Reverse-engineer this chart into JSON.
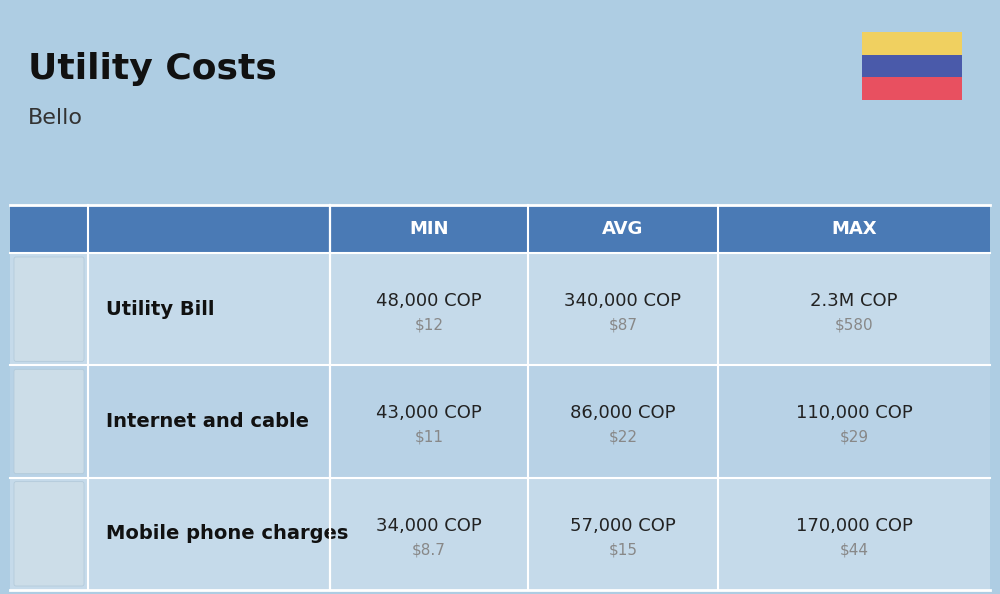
{
  "title": "Utility Costs",
  "subtitle": "Bello",
  "background_color": "#aecde3",
  "header_bg_color": "#4a7ab5",
  "header_text_color": "#ffffff",
  "row_bg_color_odd": "#c5daea",
  "row_bg_color_even": "#b8d2e6",
  "table_line_color": "#ffffff",
  "col_headers": [
    "MIN",
    "AVG",
    "MAX"
  ],
  "rows": [
    {
      "label": "Utility Bill",
      "min_cop": "48,000 COP",
      "min_usd": "$12",
      "avg_cop": "340,000 COP",
      "avg_usd": "$87",
      "max_cop": "2.3M COP",
      "max_usd": "$580"
    },
    {
      "label": "Internet and cable",
      "min_cop": "43,000 COP",
      "min_usd": "$11",
      "avg_cop": "86,000 COP",
      "avg_usd": "$22",
      "max_cop": "110,000 COP",
      "max_usd": "$29"
    },
    {
      "label": "Mobile phone charges",
      "min_cop": "34,000 COP",
      "min_usd": "$8.7",
      "avg_cop": "57,000 COP",
      "avg_usd": "$15",
      "max_cop": "170,000 COP",
      "max_usd": "$44"
    }
  ],
  "flag_yellow": "#f0d060",
  "flag_blue": "#4a5aaa",
  "flag_red": "#e85060",
  "cop_fontsize": 13,
  "usd_fontsize": 11,
  "label_fontsize": 14,
  "header_fontsize": 13,
  "title_fontsize": 26,
  "subtitle_fontsize": 16
}
